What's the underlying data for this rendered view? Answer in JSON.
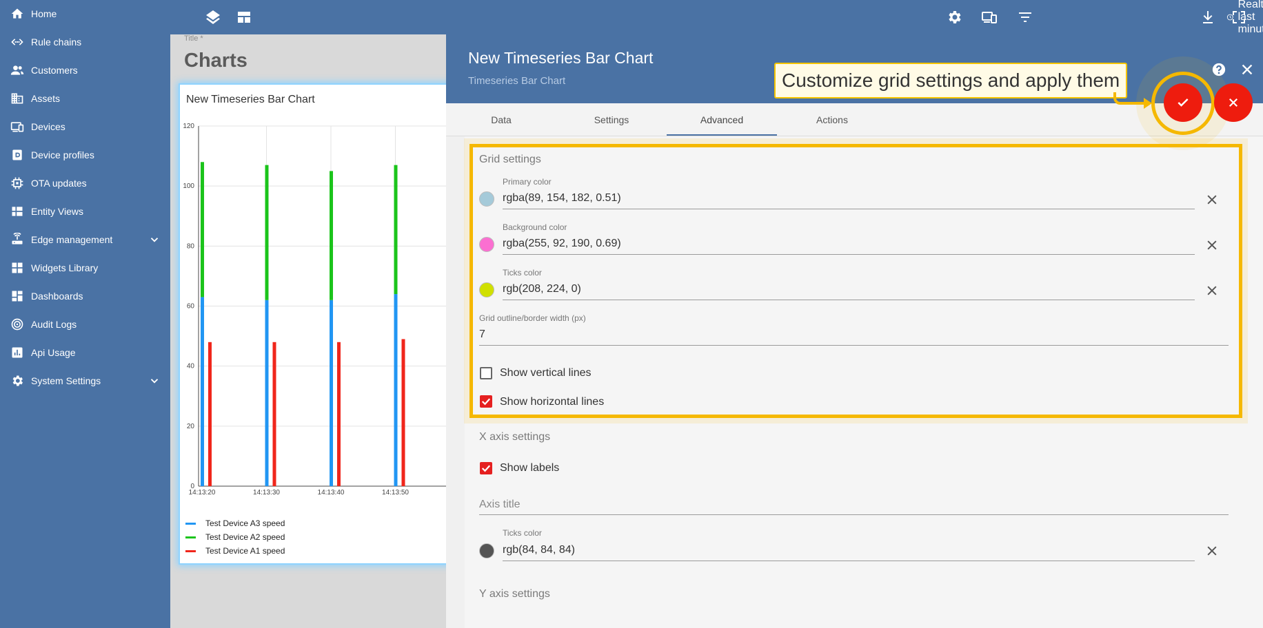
{
  "sidebar": {
    "items": [
      {
        "label": "Home",
        "icon": "home-icon"
      },
      {
        "label": "Rule chains",
        "icon": "rule-chains-icon"
      },
      {
        "label": "Customers",
        "icon": "customers-icon"
      },
      {
        "label": "Assets",
        "icon": "assets-icon"
      },
      {
        "label": "Devices",
        "icon": "devices-icon"
      },
      {
        "label": "Device profiles",
        "icon": "device-profiles-icon"
      },
      {
        "label": "OTA updates",
        "icon": "ota-updates-icon"
      },
      {
        "label": "Entity Views",
        "icon": "entity-views-icon"
      },
      {
        "label": "Edge management",
        "icon": "edge-management-icon",
        "expandable": true
      },
      {
        "label": "Widgets Library",
        "icon": "widgets-library-icon"
      },
      {
        "label": "Dashboards",
        "icon": "dashboards-icon"
      },
      {
        "label": "Audit Logs",
        "icon": "audit-logs-icon"
      },
      {
        "label": "Api Usage",
        "icon": "api-usage-icon"
      },
      {
        "label": "System Settings",
        "icon": "system-settings-icon",
        "expandable": true
      }
    ]
  },
  "topbar": {
    "time_window": "Realtime - last minute",
    "icons": [
      "layers-icon",
      "layout-icon",
      "gear-icon",
      "devices-icon",
      "filter-icon",
      "clock-icon",
      "download-icon",
      "fullscreen-icon"
    ]
  },
  "dashboard": {
    "title_label": "Title *",
    "title": "Charts"
  },
  "widget": {
    "title": "New Timeseries Bar Chart",
    "legend": [
      {
        "name": "Test Device A3 speed",
        "color": "#2196f3"
      },
      {
        "name": "Test Device A2 speed",
        "color": "#1bc41b"
      },
      {
        "name": "Test Device A1 speed",
        "color": "#f0261b"
      }
    ]
  },
  "chart_data": {
    "type": "bar",
    "categories": [
      "14:13:20",
      "14:13:30",
      "14:13:40",
      "14:13:50"
    ],
    "series": [
      {
        "name": "Test Device A3 speed",
        "values": [
          63,
          62,
          62,
          64
        ],
        "color": "#2196f3"
      },
      {
        "name": "Test Device A2 speed",
        "values": [
          108,
          107,
          105,
          107
        ],
        "color": "#1bc41b"
      },
      {
        "name": "Test Device A1 speed",
        "values": [
          48,
          48,
          48,
          49
        ],
        "color": "#f0261b"
      }
    ],
    "stacked_series": [
      "Test Device A3 speed",
      "Test Device A2 speed"
    ],
    "y_ticks": [
      "0",
      "20",
      "40",
      "60",
      "80",
      "100",
      "120"
    ],
    "ylim": [
      0,
      120
    ],
    "grid": "vertical and horizontal"
  },
  "panel": {
    "title": "New Timeseries Bar Chart",
    "subtitle": "Timeseries Bar Chart",
    "tabs": [
      "Data",
      "Settings",
      "Advanced",
      "Actions"
    ],
    "active_tab": "Advanced"
  },
  "tooltip": {
    "text": "Customize grid settings and apply them"
  },
  "grid_settings": {
    "heading": "Grid settings",
    "primary_color": {
      "label": "Primary color",
      "value": "rgba(89, 154, 182, 0.51)",
      "swatch": "#a5cad9"
    },
    "background_color": {
      "label": "Background color",
      "value": "rgba(255, 92, 190, 0.69)",
      "swatch": "#fb6fd1"
    },
    "ticks_color": {
      "label": "Ticks color",
      "value": "rgb(208, 224, 0)",
      "swatch": "#d0e000"
    },
    "border_width": {
      "label": "Grid outline/border width (px)",
      "value": "7"
    },
    "show_vertical_lines": {
      "label": "Show vertical lines",
      "checked": false
    },
    "show_horizontal_lines": {
      "label": "Show horizontal lines",
      "checked": true
    }
  },
  "x_axis_settings": {
    "heading": "X axis settings",
    "show_labels": {
      "label": "Show labels",
      "checked": true
    },
    "axis_title_placeholder": "Axis title",
    "ticks_color": {
      "label": "Ticks color",
      "value": "rgb(84, 84, 84)",
      "swatch": "#545454"
    }
  },
  "y_axis_settings": {
    "heading": "Y axis settings"
  }
}
